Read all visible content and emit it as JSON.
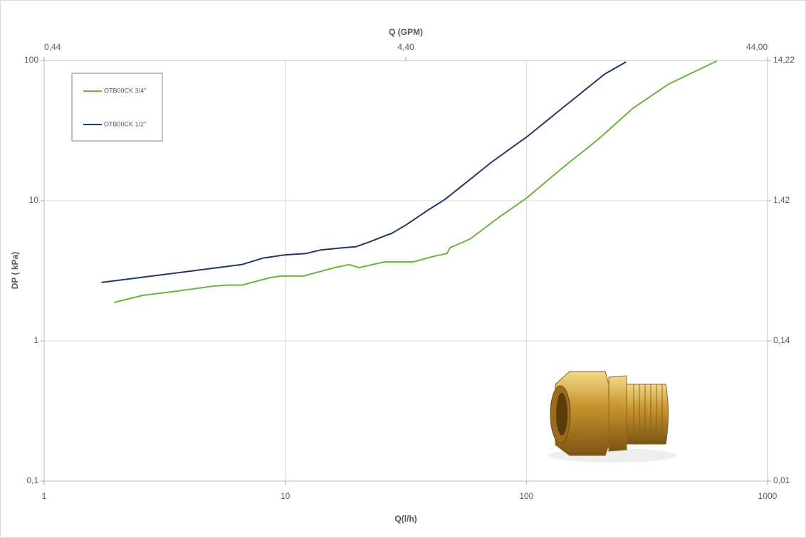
{
  "chart_data": {
    "type": "line",
    "x_label": "Q(l/h)",
    "y_label": "DP ( kPa)",
    "x2_label": "Q (GPM)",
    "xscale": "log",
    "yscale": "log",
    "xlim": [
      1,
      1000
    ],
    "xticks": [
      1,
      10,
      100,
      1000
    ],
    "ylim": [
      0.1,
      100
    ],
    "yticks": [
      {
        "value": 0.1,
        "label": "0,1"
      },
      1,
      10,
      100
    ],
    "x2lim": [
      0.44,
      44
    ],
    "x2ticks": [
      {
        "value": 0.44,
        "label": "0,44"
      },
      {
        "value": 4.4,
        "label": "4,40"
      },
      {
        "value": 44,
        "label": "44,00"
      }
    ],
    "y2lim": [
      0.01422,
      14.22
    ],
    "y2ticks": [
      {
        "value": 0.01422,
        "label": "0,01"
      },
      {
        "value": 0.1422,
        "label": "0,14"
      },
      {
        "value": 1.422,
        "label": "1,42"
      },
      {
        "value": 14.22,
        "label": "14,22"
      }
    ],
    "grid": true,
    "legend": "upper left",
    "series": [
      {
        "name": "OTB00CK 3/4\"",
        "color": "#6db33f",
        "x": [
          1.95,
          2.56,
          3.59,
          5.04,
          5.77,
          6.6,
          8.7,
          9.6,
          11.9,
          16.0,
          18.4,
          20.2,
          25.8,
          33.9,
          41.5,
          46.9,
          48.2,
          58.3,
          76.5,
          100.6,
          140.8,
          197.8,
          277,
          389,
          615
        ],
        "values": [
          1.88,
          2.11,
          2.27,
          2.46,
          2.5,
          2.5,
          2.83,
          2.9,
          2.9,
          3.33,
          3.5,
          3.33,
          3.66,
          3.66,
          4.02,
          4.2,
          4.62,
          5.32,
          7.55,
          10.5,
          17.1,
          27.3,
          45.7,
          67.9,
          98.9
        ]
      },
      {
        "name": "OTB00CK 1/2\"",
        "color": "#203864",
        "x": [
          1.73,
          6.6,
          8.1,
          9.9,
          12.2,
          14.0,
          17.1,
          19.7,
          22.5,
          25.8,
          27.6,
          31.6,
          38.8,
          45.9,
          54.5,
          71.6,
          100.6,
          140.8,
          211,
          259
        ],
        "values": [
          2.61,
          3.5,
          3.9,
          4.1,
          4.2,
          4.45,
          4.6,
          4.7,
          5.1,
          5.6,
          5.84,
          6.7,
          8.5,
          10.2,
          12.9,
          18.8,
          28.6,
          45.7,
          80,
          97.7
        ]
      }
    ]
  }
}
